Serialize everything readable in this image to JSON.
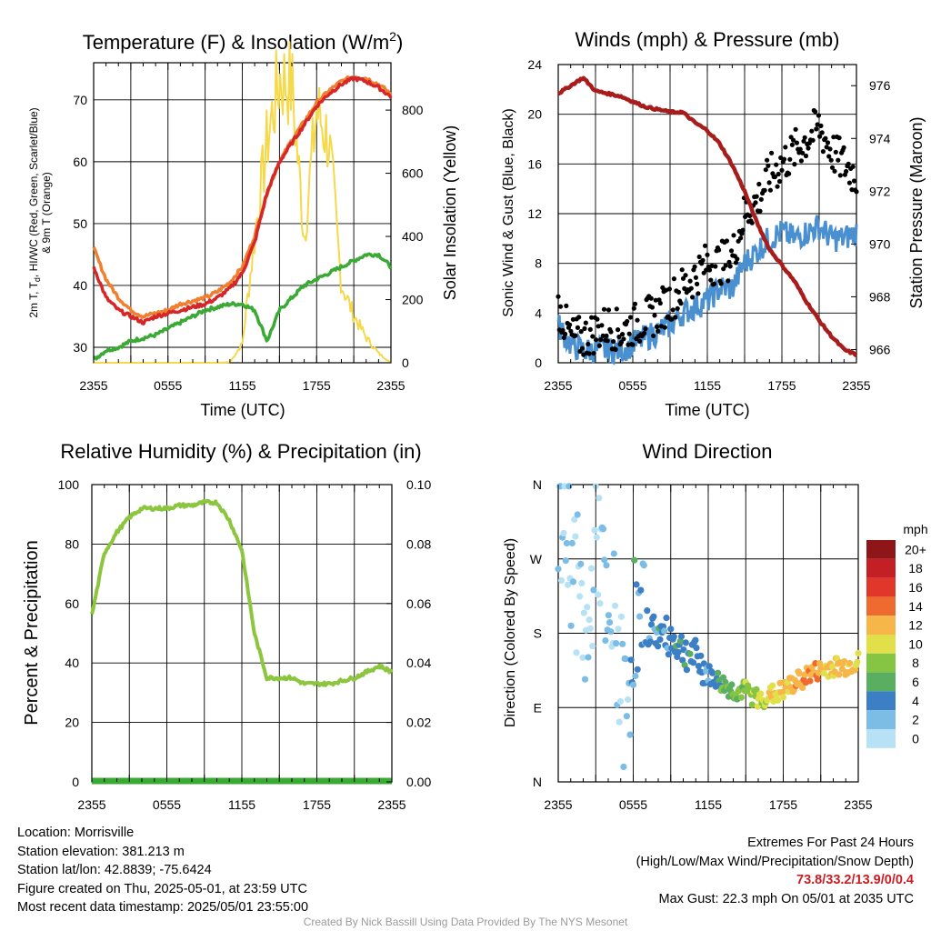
{
  "colors": {
    "red": "#d62728",
    "scarlet": "#c00000",
    "green": "#3aaa35",
    "orange": "#f08030",
    "blue": "#4a90d0",
    "yellow": "#f5d94a",
    "maroon": "#a81c1c",
    "rhgreen": "#8cc63f",
    "precip": "#3aaa35",
    "black": "#000000"
  },
  "time_ticks": [
    "2355",
    "0555",
    "1155",
    "1755",
    "2355"
  ],
  "panels": {
    "temp": {
      "title_main": "Temperature (F) & Insolation (W/m",
      "title_sup": "2",
      "title_end": ")",
      "ylabel_left": "2m T, T",
      "ylabel_sub": "d",
      "ylabel_left_rest": ", HI/WC (Red, Green, Scarlet/Blue)",
      "ylabel_left2": "& 9m T (Orange)",
      "ylabel_right": "Solar Insolation (Yellow)",
      "xlabel": "Time (UTC)",
      "yticks_left": [
        "30",
        "40",
        "50",
        "60",
        "70"
      ],
      "yticks_right": [
        "0",
        "200",
        "400",
        "600",
        "800"
      ]
    },
    "wind": {
      "title": "Winds (mph) & Pressure (mb)",
      "ylabel_left": "Sonic Wind & Gust (Blue, Black)",
      "ylabel_right": "Station Pressure (Maroon)",
      "xlabel": "Time (UTC)",
      "yticks_left": [
        "0",
        "4",
        "8",
        "12",
        "16",
        "20",
        "24"
      ],
      "yticks_right": [
        "966",
        "968",
        "970",
        "972",
        "974",
        "976"
      ]
    },
    "rh": {
      "title": "Relative Humidity (%) & Precipitation (in)",
      "ylabel_left": "Percent & Precipitation",
      "yticks_left": [
        "0",
        "20",
        "40",
        "60",
        "80",
        "100"
      ],
      "yticks_right": [
        "0.00",
        "0.02",
        "0.04",
        "0.06",
        "0.08",
        "0.10"
      ]
    },
    "dir": {
      "title": "Wind Direction",
      "ylabel_left": "Direction (Colored By Speed)",
      "yticks_left": [
        "N",
        "E",
        "S",
        "W",
        "N"
      ],
      "colorbar_title": "mph",
      "colorbar_labels": [
        "0",
        "2",
        "4",
        "6",
        "8",
        "10",
        "12",
        "14",
        "16",
        "18",
        "20+"
      ],
      "colorbar_colors": [
        "#b7e2f5",
        "#7cbde6",
        "#3d7fc4",
        "#5aae62",
        "#86c443",
        "#e2e04a",
        "#f7b64a",
        "#ef6a2e",
        "#e1372b",
        "#c51f26",
        "#8e1518"
      ]
    }
  },
  "chart_data": [
    {
      "type": "line",
      "title": "Temperature (F) & Insolation (W/m2)",
      "xlabel": "Time (UTC)",
      "ylabel": "2m T, Td, HI/WC (Red, Green, Scarlet/Blue) & 9m T (Orange)",
      "y2label": "Solar Insolation (Yellow)",
      "x_ticks": [
        "2355",
        "0555",
        "1155",
        "1755",
        "2355"
      ],
      "ylim": [
        27.5,
        76
      ],
      "y2lim": [
        0,
        950
      ],
      "x_hours": [
        0,
        1,
        2,
        3,
        4,
        5,
        6,
        7,
        8,
        9,
        10,
        11,
        12,
        13,
        14,
        15,
        16,
        17,
        18,
        19,
        20,
        21,
        22,
        23,
        24
      ],
      "series": [
        {
          "name": "2m T",
          "color": "red",
          "values": [
            43,
            38,
            36,
            35,
            34,
            35,
            35.5,
            36,
            36.5,
            37,
            38,
            39.5,
            42,
            47,
            55,
            60,
            63,
            66,
            69,
            71,
            72.5,
            73.5,
            73,
            72,
            70.5
          ]
        },
        {
          "name": "9m T",
          "color": "orange",
          "values": [
            46,
            41,
            38,
            36,
            35,
            35.5,
            36,
            37,
            37.5,
            38,
            39,
            40.5,
            43,
            48,
            55,
            60,
            63.5,
            66.5,
            69.5,
            71.5,
            73,
            73.8,
            73.5,
            72.5,
            71
          ]
        },
        {
          "name": "Td",
          "color": "green",
          "values": [
            28,
            29.5,
            30,
            31,
            31.5,
            32,
            33,
            34,
            35,
            36,
            36.5,
            37,
            37,
            36,
            31,
            36,
            38,
            40,
            41,
            42,
            43,
            44,
            45,
            45,
            43
          ]
        },
        {
          "name": "Solar Insolation",
          "color": "yellow",
          "axis": "right",
          "values": [
            0,
            0,
            0,
            0,
            0,
            0,
            0,
            0,
            0,
            0,
            0,
            2,
            60,
            400,
            700,
            900,
            880,
            400,
            800,
            700,
            250,
            150,
            80,
            30,
            0
          ]
        }
      ]
    },
    {
      "type": "line",
      "title": "Winds (mph) & Pressure (mb)",
      "xlabel": "Time (UTC)",
      "ylabel": "Sonic Wind & Gust (Blue, Black)",
      "y2label": "Station Pressure (Maroon)",
      "ylim": [
        0,
        24
      ],
      "y2lim": [
        965.5,
        976.8
      ],
      "x_hours": [
        0,
        1,
        2,
        3,
        4,
        5,
        6,
        7,
        8,
        9,
        10,
        11,
        12,
        13,
        14,
        15,
        16,
        17,
        18,
        19,
        20,
        21,
        22,
        23,
        24
      ],
      "series": [
        {
          "name": "Sonic Wind",
          "color": "blue",
          "values": [
            3,
            1.5,
            1,
            1,
            1,
            1,
            1.5,
            2,
            2.5,
            3,
            4,
            4.5,
            5,
            6,
            6,
            8,
            9,
            10,
            10.5,
            10,
            10.5,
            11,
            10,
            10,
            10.5
          ]
        },
        {
          "name": "Gust",
          "color": "black",
          "values": [
            4.5,
            2,
            2,
            2.5,
            3,
            2.5,
            3,
            3.5,
            4,
            5,
            6,
            7,
            8,
            8,
            8.5,
            12,
            13,
            15,
            16,
            17,
            18,
            19,
            17,
            16,
            15
          ]
        },
        {
          "name": "Station Pressure",
          "color": "maroon",
          "axis": "right",
          "values": [
            975.7,
            976,
            976.3,
            975.8,
            975.7,
            975.6,
            975.4,
            975.2,
            975.1,
            975,
            975,
            974.6,
            974.3,
            973.8,
            973,
            972,
            970.8,
            969.8,
            969.2,
            968.6,
            967.8,
            967.1,
            966.5,
            966,
            965.8
          ]
        }
      ]
    },
    {
      "type": "line",
      "title": "Relative Humidity (%) & Precipitation (in)",
      "ylabel": "Percent & Precipitation",
      "ylim": [
        0,
        100
      ],
      "y2lim": [
        0,
        0.1
      ],
      "x_hours": [
        0,
        1,
        2,
        3,
        4,
        5,
        6,
        7,
        8,
        9,
        10,
        11,
        12,
        13,
        14,
        15,
        16,
        17,
        18,
        19,
        20,
        21,
        22,
        23,
        24
      ],
      "series": [
        {
          "name": "Relative Humidity",
          "color": "rhgreen",
          "values": [
            56,
            77,
            84,
            89,
            92,
            92,
            92,
            93,
            93,
            94,
            94,
            88,
            78,
            50,
            35,
            35,
            35,
            33,
            33,
            33,
            34,
            35,
            37,
            39,
            37
          ]
        },
        {
          "name": "Precipitation",
          "color": "precip",
          "axis": "right",
          "values": [
            0,
            0,
            0,
            0,
            0,
            0,
            0,
            0,
            0,
            0,
            0,
            0,
            0,
            0,
            0,
            0,
            0,
            0,
            0,
            0,
            0,
            0,
            0,
            0,
            0
          ]
        }
      ]
    },
    {
      "type": "scatter",
      "title": "Wind Direction",
      "ylabel": "Direction (Colored By Speed)",
      "ylim": [
        0,
        360
      ],
      "y_ticks": [
        "N",
        "E",
        "S",
        "W",
        "N"
      ],
      "colorbar": "mph",
      "x_hours": [
        0,
        0.5,
        1,
        1.5,
        2,
        2.5,
        3,
        3.5,
        4,
        4.5,
        5,
        5.5,
        6,
        6.5,
        7,
        8,
        9,
        10,
        11,
        12,
        13,
        14,
        15,
        16,
        17,
        18,
        19,
        20,
        21,
        22,
        23,
        24
      ],
      "direction": [
        300,
        320,
        280,
        240,
        190,
        160,
        330,
        260,
        150,
        200,
        120,
        80,
        200,
        170,
        190,
        180,
        175,
        160,
        150,
        130,
        120,
        110,
        110,
        100,
        105,
        110,
        120,
        130,
        135,
        140,
        140,
        145
      ],
      "speed": [
        2,
        1,
        2,
        1,
        0,
        1,
        0,
        1,
        2,
        1,
        1,
        1,
        4,
        3,
        3,
        4,
        4,
        4,
        4,
        3,
        6,
        7,
        8,
        9,
        10,
        11,
        12,
        13,
        12,
        11,
        12,
        10
      ]
    }
  ],
  "info": {
    "location": "Location: Morrisville",
    "elevation": "Station elevation: 381.213 m",
    "latlon": "Station lat/lon: 42.8839; -75.6424",
    "created": "Figure created on Thu, 2025-05-01, at 23:59 UTC",
    "recent": "Most recent data timestamp: 2025/05/01 23:55:00",
    "extremes_title": "Extremes For Past 24 Hours",
    "extremes_sub": "(High/Low/Max Wind/Precipitation/Snow Depth)",
    "extremes_values": "73.8/33.2/13.9/0/0.4",
    "max_gust": "Max Gust: 22.3 mph On 05/01 at 2035 UTC",
    "credit": "Created By Nick Bassill Using Data Provided By The NYS Mesonet"
  }
}
